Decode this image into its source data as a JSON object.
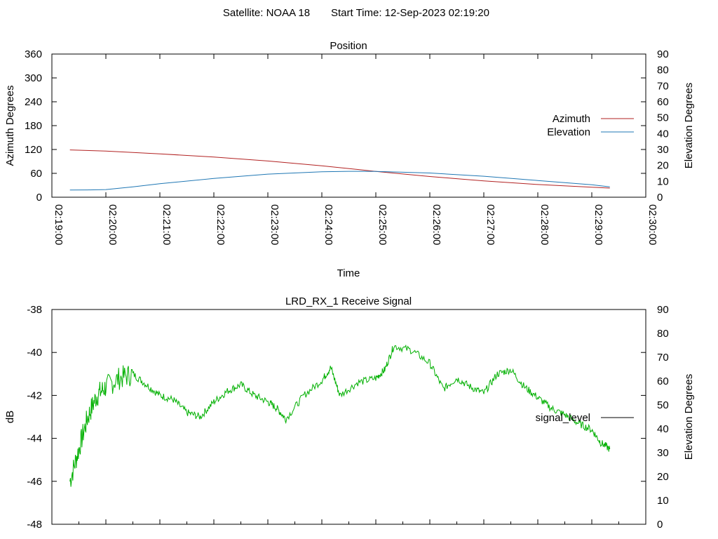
{
  "header": {
    "satellite_label": "Satellite: NOAA 18",
    "start_label": "Start Time: 12-Sep-2023 02:19:20"
  },
  "chart_data": [
    {
      "type": "line",
      "title": "Position",
      "xlabel": "Time",
      "ylabel": "Azimuth Degrees",
      "y2label": "Elevation Degrees",
      "x_tick_labels": [
        "02:19:00",
        "02:20:00",
        "02:21:00",
        "02:22:00",
        "02:23:00",
        "02:24:00",
        "02:25:00",
        "02:26:00",
        "02:27:00",
        "02:28:00",
        "02:29:00",
        "02:30:00"
      ],
      "xlim": [
        "02:19:00",
        "02:30:00"
      ],
      "y_ticks": [
        0,
        60,
        120,
        180,
        240,
        300,
        360
      ],
      "ylim": [
        0,
        360
      ],
      "y2_ticks": [
        0,
        10,
        20,
        30,
        40,
        50,
        60,
        70,
        80,
        90
      ],
      "y2lim": [
        0,
        90
      ],
      "grid": false,
      "legend_position": "right",
      "series": [
        {
          "name": "Azimuth",
          "axis": "left",
          "color": "#b22222",
          "x": [
            "02:19:20",
            "02:20:00",
            "02:21:00",
            "02:22:00",
            "02:23:00",
            "02:24:00",
            "02:25:00",
            "02:26:00",
            "02:27:00",
            "02:28:00",
            "02:29:00",
            "02:29:20"
          ],
          "values": [
            119,
            116,
            109,
            101,
            91,
            79,
            65,
            52,
            41,
            32,
            25,
            23
          ]
        },
        {
          "name": "Elevation",
          "axis": "right",
          "color": "#1f77b4",
          "x": [
            "02:19:20",
            "02:19:40",
            "02:20:00",
            "02:20:30",
            "02:21:00",
            "02:22:00",
            "02:23:00",
            "02:24:00",
            "02:24:30",
            "02:25:00",
            "02:26:00",
            "02:27:00",
            "02:28:00",
            "02:29:00",
            "02:29:20"
          ],
          "values": [
            4.5,
            4.6,
            4.8,
            6.5,
            8.5,
            11.8,
            14.5,
            16.0,
            16.3,
            16.2,
            15.2,
            13.2,
            10.5,
            7.8,
            6.5
          ]
        }
      ]
    },
    {
      "type": "line",
      "title": "LRD_RX_1 Receive Signal",
      "ylabel": "dB",
      "y2label": "Elevation Degrees",
      "y_ticks": [
        -48,
        -46,
        -44,
        -42,
        -40,
        -38
      ],
      "ylim": [
        -48,
        -38
      ],
      "y2_ticks": [
        0,
        10,
        20,
        30,
        40,
        50,
        60,
        70,
        80,
        90
      ],
      "y2lim": [
        0,
        90
      ],
      "xlim": [
        "02:19:00",
        "02:30:00"
      ],
      "grid": false,
      "legend_position": "right",
      "series": [
        {
          "name": "signal_level",
          "color": "#00b000",
          "x": [
            "02:19:20",
            "02:19:30",
            "02:19:40",
            "02:19:50",
            "02:20:00",
            "02:20:15",
            "02:20:30",
            "02:20:45",
            "02:21:00",
            "02:21:15",
            "02:21:30",
            "02:21:45",
            "02:22:00",
            "02:22:15",
            "02:22:30",
            "02:22:45",
            "02:23:00",
            "02:23:10",
            "02:23:20",
            "02:23:40",
            "02:24:00",
            "02:24:10",
            "02:24:20",
            "02:24:40",
            "02:25:00",
            "02:25:10",
            "02:25:20",
            "02:25:40",
            "02:26:00",
            "02:26:15",
            "02:26:30",
            "02:26:45",
            "02:27:00",
            "02:27:15",
            "02:27:30",
            "02:27:45",
            "02:28:00",
            "02:28:15",
            "02:28:30",
            "02:28:45",
            "02:29:00",
            "02:29:10",
            "02:29:20"
          ],
          "values": [
            -46.0,
            -44.5,
            -43.0,
            -42.0,
            -41.6,
            -41.2,
            -41.0,
            -41.5,
            -42.0,
            -42.2,
            -42.8,
            -43.0,
            -42.3,
            -41.8,
            -41.5,
            -42.0,
            -42.3,
            -42.6,
            -43.1,
            -42.0,
            -41.3,
            -40.7,
            -42.0,
            -41.4,
            -41.2,
            -40.8,
            -39.7,
            -39.9,
            -40.5,
            -41.7,
            -41.2,
            -41.6,
            -41.9,
            -41.0,
            -40.8,
            -41.6,
            -42.1,
            -42.6,
            -42.9,
            -43.3,
            -43.6,
            -44.2,
            -44.5
          ]
        }
      ]
    }
  ]
}
